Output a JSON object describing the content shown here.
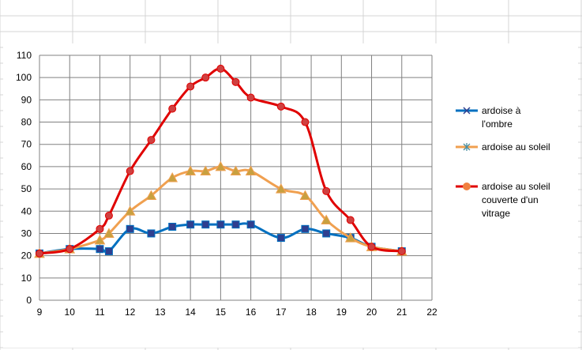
{
  "colors": {
    "sheet_grid": "#d4d4d4",
    "plot_grid": "#808080",
    "axis_text": "#000000"
  },
  "chart_data": {
    "type": "scatter",
    "title": "",
    "xlabel": "",
    "ylabel": "",
    "xlim": [
      9,
      22
    ],
    "ylim": [
      0,
      110
    ],
    "x_ticks": [
      9,
      10,
      11,
      12,
      13,
      14,
      15,
      16,
      17,
      18,
      19,
      20,
      21,
      22
    ],
    "y_ticks": [
      0,
      10,
      20,
      30,
      40,
      50,
      60,
      70,
      80,
      90,
      100,
      110
    ],
    "grid": true,
    "smooth_lines": true,
    "legend_position": "right",
    "series": [
      {
        "name": "ardoise à l'ombre",
        "legend_lines": [
          "ardoise à",
          "l'ombre"
        ],
        "color": "#0070c0",
        "legend_marker": "x",
        "marker_fill": "#2f3f8f",
        "marker": "square",
        "x": [
          9,
          10,
          11,
          11.3,
          12,
          12.7,
          13.4,
          14,
          14.5,
          15,
          15.5,
          16,
          17,
          17.8,
          18.5,
          19.3,
          20,
          21
        ],
        "y": [
          21,
          23,
          23,
          22,
          32,
          30,
          33,
          34,
          34,
          34,
          34,
          34,
          28,
          32,
          30,
          28,
          24,
          22
        ]
      },
      {
        "name": "ardoise au soleil",
        "legend_lines": [
          "ardoise au soleil"
        ],
        "color": "#f0a050",
        "legend_marker": "asterisk",
        "marker_fill": "#c8a040",
        "marker": "triangle",
        "x": [
          9,
          10,
          11,
          11.3,
          12,
          12.7,
          13.4,
          14,
          14.5,
          15,
          15.5,
          16,
          17,
          17.8,
          18.5,
          19.3,
          20,
          21
        ],
        "y": [
          21,
          23,
          27,
          30,
          40,
          47,
          55,
          58,
          58,
          60,
          58,
          58,
          50,
          47,
          36,
          28,
          24,
          22
        ]
      },
      {
        "name": "ardoise au soleil couverte d'un vitrage",
        "legend_lines": [
          "ardoise au soleil",
          "couverte d'un",
          "vitrage"
        ],
        "color": "#e00000",
        "legend_marker": "circle",
        "marker_fill": "#d04040",
        "marker": "circle",
        "x": [
          9,
          10,
          11,
          11.3,
          12,
          12.7,
          13.4,
          14,
          14.5,
          15,
          15.5,
          16,
          17,
          17.8,
          18.5,
          19.3,
          20,
          21
        ],
        "y": [
          21,
          23,
          32,
          38,
          58,
          72,
          86,
          96,
          100,
          104,
          98,
          91,
          87,
          80,
          49,
          36,
          24,
          22
        ]
      }
    ]
  }
}
